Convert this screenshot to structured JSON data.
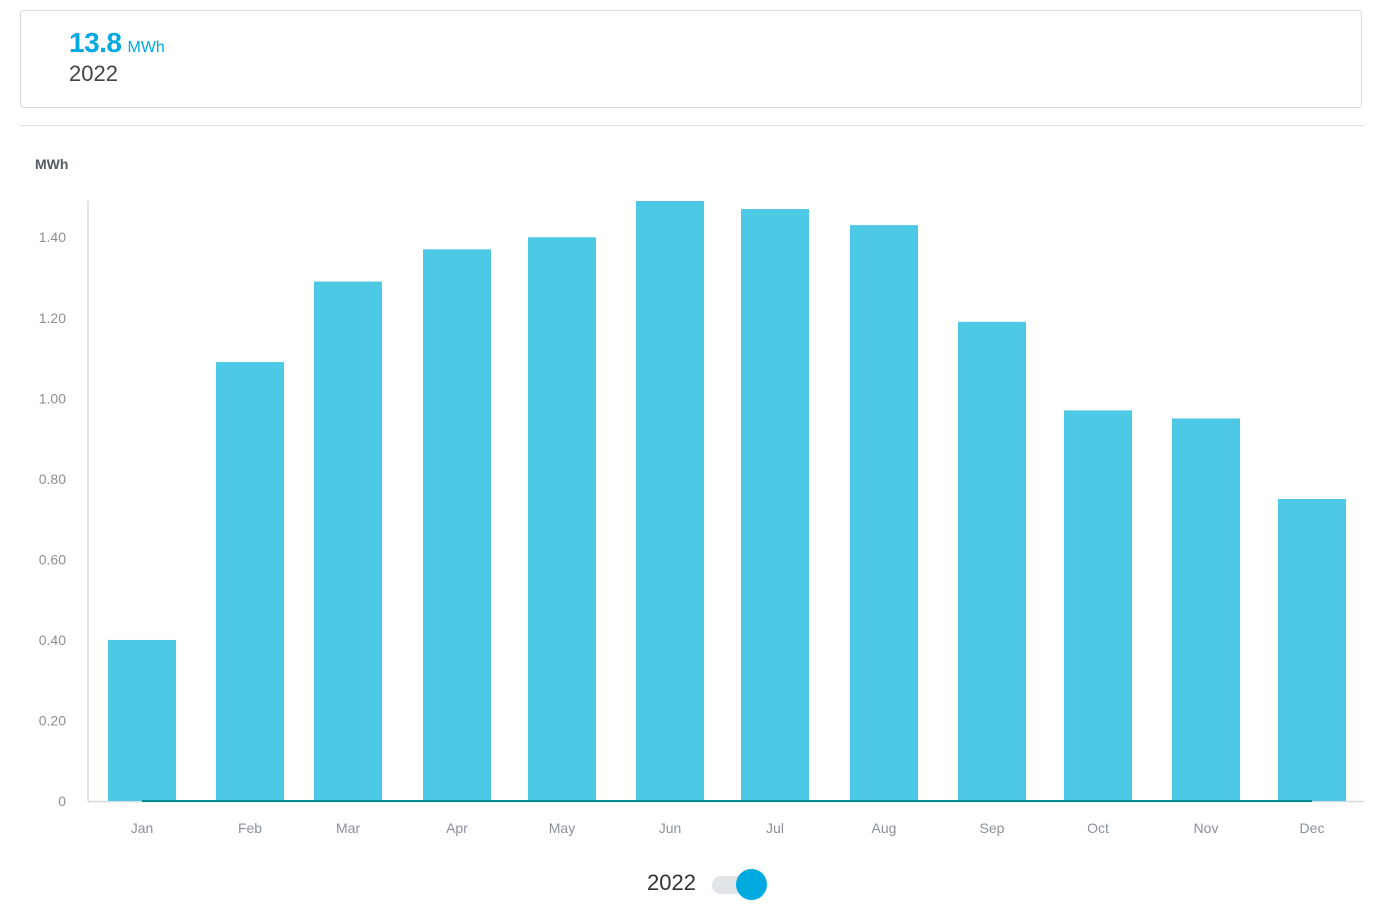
{
  "summary": {
    "value": "13.8",
    "unit": "MWh",
    "year": "2022"
  },
  "legend": {
    "label": "2022",
    "toggle_on": true
  },
  "colors": {
    "accent": "#00a9e0",
    "bar": "#4dc9e6",
    "baseline": "#008a99"
  },
  "chart_data": {
    "type": "bar",
    "ylabel": "MWh",
    "categories": [
      "Jan",
      "Feb",
      "Mar",
      "Apr",
      "May",
      "Jun",
      "Jul",
      "Aug",
      "Sep",
      "Oct",
      "Nov",
      "Dec"
    ],
    "series": [
      {
        "name": "2022",
        "values": [
          0.4,
          1.09,
          1.29,
          1.37,
          1.4,
          1.49,
          1.47,
          1.43,
          1.19,
          0.97,
          0.95,
          0.75
        ]
      }
    ],
    "y_ticks": [
      "0",
      "0.20",
      "0.40",
      "0.60",
      "0.80",
      "1.00",
      "1.20",
      "1.40"
    ],
    "ylim": [
      0,
      1.49
    ],
    "grid": false,
    "legend_position": "bottom-center"
  }
}
